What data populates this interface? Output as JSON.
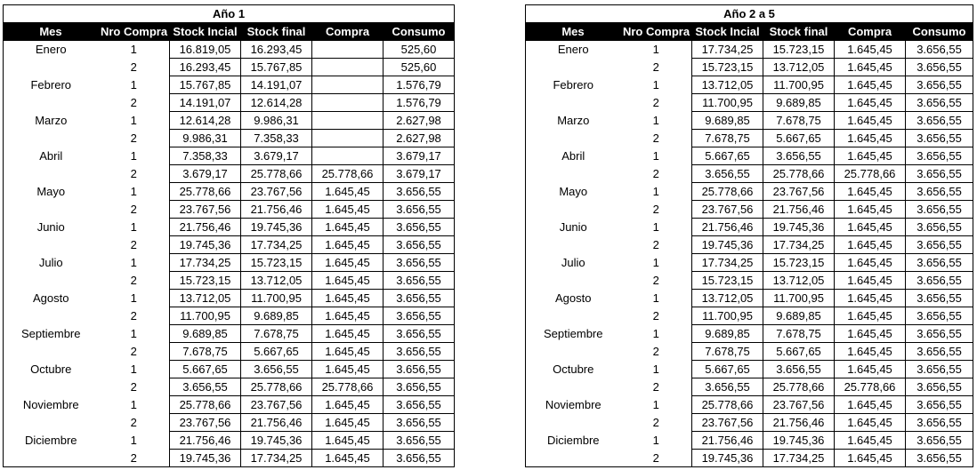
{
  "tables": [
    {
      "title": "Año 1",
      "headers": [
        "Mes",
        "Nro Compra",
        "Stock Incial",
        "Stock final",
        "Compra",
        "Consumo"
      ],
      "months": [
        {
          "name": "Enero",
          "rows": [
            [
              "1",
              "16.819,05",
              "16.293,45",
              null,
              "525,60"
            ],
            [
              "2",
              "16.293,45",
              "15.767,85",
              null,
              "525,60"
            ]
          ]
        },
        {
          "name": "Febrero",
          "rows": [
            [
              "1",
              "15.767,85",
              "14.191,07",
              null,
              "1.576,79"
            ],
            [
              "2",
              "14.191,07",
              "12.614,28",
              null,
              "1.576,79"
            ]
          ]
        },
        {
          "name": "Marzo",
          "rows": [
            [
              "1",
              "12.614,28",
              "9.986,31",
              null,
              "2.627,98"
            ],
            [
              "2",
              "9.986,31",
              "7.358,33",
              null,
              "2.627,98"
            ]
          ]
        },
        {
          "name": "Abril",
          "rows": [
            [
              "1",
              "7.358,33",
              "3.679,17",
              null,
              "3.679,17"
            ],
            [
              "2",
              "3.679,17",
              "25.778,66",
              "25.778,66",
              "3.679,17"
            ]
          ]
        },
        {
          "name": "Mayo",
          "rows": [
            [
              "1",
              "25.778,66",
              "23.767,56",
              "1.645,45",
              "3.656,55"
            ],
            [
              "2",
              "23.767,56",
              "21.756,46",
              "1.645,45",
              "3.656,55"
            ]
          ]
        },
        {
          "name": "Junio",
          "rows": [
            [
              "1",
              "21.756,46",
              "19.745,36",
              "1.645,45",
              "3.656,55"
            ],
            [
              "2",
              "19.745,36",
              "17.734,25",
              "1.645,45",
              "3.656,55"
            ]
          ]
        },
        {
          "name": "Julio",
          "rows": [
            [
              "1",
              "17.734,25",
              "15.723,15",
              "1.645,45",
              "3.656,55"
            ],
            [
              "2",
              "15.723,15",
              "13.712,05",
              "1.645,45",
              "3.656,55"
            ]
          ]
        },
        {
          "name": "Agosto",
          "rows": [
            [
              "1",
              "13.712,05",
              "11.700,95",
              "1.645,45",
              "3.656,55"
            ],
            [
              "2",
              "11.700,95",
              "9.689,85",
              "1.645,45",
              "3.656,55"
            ]
          ]
        },
        {
          "name": "Septiembre",
          "rows": [
            [
              "1",
              "9.689,85",
              "7.678,75",
              "1.645,45",
              "3.656,55"
            ],
            [
              "2",
              "7.678,75",
              "5.667,65",
              "1.645,45",
              "3.656,55"
            ]
          ]
        },
        {
          "name": "Octubre",
          "rows": [
            [
              "1",
              "5.667,65",
              "3.656,55",
              "1.645,45",
              "3.656,55"
            ],
            [
              "2",
              "3.656,55",
              "25.778,66",
              "25.778,66",
              "3.656,55"
            ]
          ]
        },
        {
          "name": "Noviembre",
          "rows": [
            [
              "1",
              "25.778,66",
              "23.767,56",
              "1.645,45",
              "3.656,55"
            ],
            [
              "2",
              "23.767,56",
              "21.756,46",
              "1.645,45",
              "3.656,55"
            ]
          ]
        },
        {
          "name": "Diciembre",
          "rows": [
            [
              "1",
              "21.756,46",
              "19.745,36",
              "1.645,45",
              "3.656,55"
            ],
            [
              "2",
              "19.745,36",
              "17.734,25",
              "1.645,45",
              "3.656,55"
            ]
          ]
        }
      ]
    },
    {
      "title": "Año 2 a 5",
      "headers": [
        "Mes",
        "Nro Compra",
        "Stock Incial",
        "Stock final",
        "Compra",
        "Consumo"
      ],
      "months": [
        {
          "name": "Enero",
          "rows": [
            [
              "1",
              "17.734,25",
              "15.723,15",
              "1.645,45",
              "3.656,55"
            ],
            [
              "2",
              "15.723,15",
              "13.712,05",
              "1.645,45",
              "3.656,55"
            ]
          ]
        },
        {
          "name": "Febrero",
          "rows": [
            [
              "1",
              "13.712,05",
              "11.700,95",
              "1.645,45",
              "3.656,55"
            ],
            [
              "2",
              "11.700,95",
              "9.689,85",
              "1.645,45",
              "3.656,55"
            ]
          ]
        },
        {
          "name": "Marzo",
          "rows": [
            [
              "1",
              "9.689,85",
              "7.678,75",
              "1.645,45",
              "3.656,55"
            ],
            [
              "2",
              "7.678,75",
              "5.667,65",
              "1.645,45",
              "3.656,55"
            ]
          ]
        },
        {
          "name": "Abril",
          "rows": [
            [
              "1",
              "5.667,65",
              "3.656,55",
              "1.645,45",
              "3.656,55"
            ],
            [
              "2",
              "3.656,55",
              "25.778,66",
              "25.778,66",
              "3.656,55"
            ]
          ]
        },
        {
          "name": "Mayo",
          "rows": [
            [
              "1",
              "25.778,66",
              "23.767,56",
              "1.645,45",
              "3.656,55"
            ],
            [
              "2",
              "23.767,56",
              "21.756,46",
              "1.645,45",
              "3.656,55"
            ]
          ]
        },
        {
          "name": "Junio",
          "rows": [
            [
              "1",
              "21.756,46",
              "19.745,36",
              "1.645,45",
              "3.656,55"
            ],
            [
              "2",
              "19.745,36",
              "17.734,25",
              "1.645,45",
              "3.656,55"
            ]
          ]
        },
        {
          "name": "Julio",
          "rows": [
            [
              "1",
              "17.734,25",
              "15.723,15",
              "1.645,45",
              "3.656,55"
            ],
            [
              "2",
              "15.723,15",
              "13.712,05",
              "1.645,45",
              "3.656,55"
            ]
          ]
        },
        {
          "name": "Agosto",
          "rows": [
            [
              "1",
              "13.712,05",
              "11.700,95",
              "1.645,45",
              "3.656,55"
            ],
            [
              "2",
              "11.700,95",
              "9.689,85",
              "1.645,45",
              "3.656,55"
            ]
          ]
        },
        {
          "name": "Septiembre",
          "rows": [
            [
              "1",
              "9.689,85",
              "7.678,75",
              "1.645,45",
              "3.656,55"
            ],
            [
              "2",
              "7.678,75",
              "5.667,65",
              "1.645,45",
              "3.656,55"
            ]
          ]
        },
        {
          "name": "Octubre",
          "rows": [
            [
              "1",
              "5.667,65",
              "3.656,55",
              "1.645,45",
              "3.656,55"
            ],
            [
              "2",
              "3.656,55",
              "25.778,66",
              "25.778,66",
              "3.656,55"
            ]
          ]
        },
        {
          "name": "Noviembre",
          "rows": [
            [
              "1",
              "25.778,66",
              "23.767,56",
              "1.645,45",
              "3.656,55"
            ],
            [
              "2",
              "23.767,56",
              "21.756,46",
              "1.645,45",
              "3.656,55"
            ]
          ]
        },
        {
          "name": "Diciembre",
          "rows": [
            [
              "1",
              "21.756,46",
              "19.745,36",
              "1.645,45",
              "3.656,55"
            ],
            [
              "2",
              "19.745,36",
              "17.734,25",
              "1.645,45",
              "3.656,55"
            ]
          ]
        }
      ]
    }
  ]
}
